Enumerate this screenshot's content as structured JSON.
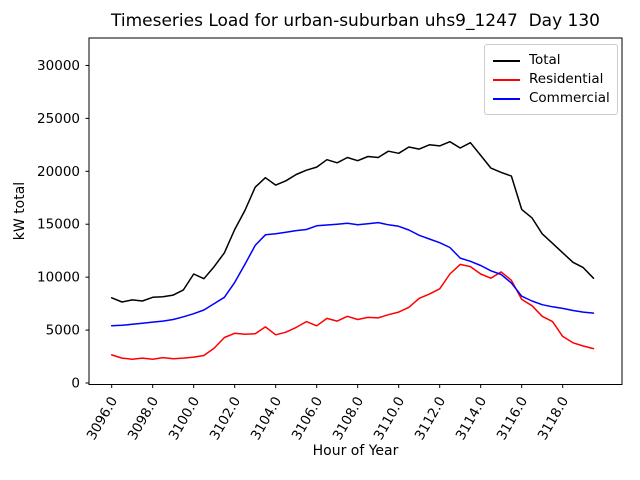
{
  "title": "Timeseries Load for urban-suburban uhs9_1247  Day 130",
  "axes": {
    "xlabel": "Hour of Year",
    "ylabel": "kW total",
    "x_ticks": [
      3096,
      3098,
      3100,
      3102,
      3104,
      3106,
      3108,
      3110,
      3112,
      3114,
      3116,
      3118
    ],
    "x_tick_labels": [
      "3096.0",
      "3098.0",
      "3100.0",
      "3102.0",
      "3104.0",
      "3106.0",
      "3108.0",
      "3110.0",
      "3112.0",
      "3114.0",
      "3116.0",
      "3118.0"
    ],
    "y_ticks": [
      0,
      5000,
      10000,
      15000,
      20000,
      25000,
      30000
    ],
    "y_tick_labels": [
      "0",
      "5000",
      "10000",
      "15000",
      "20000",
      "25000",
      "30000"
    ]
  },
  "legend": {
    "items": [
      {
        "label": "Total",
        "color": "#000000"
      },
      {
        "label": "Residential",
        "color": "#ff0000"
      },
      {
        "label": "Commercial",
        "color": "#0000ff"
      }
    ]
  },
  "chart_data": {
    "type": "line",
    "title": "Timeseries Load for urban-suburban uhs9_1247  Day 130",
    "xlabel": "Hour of Year",
    "ylabel": "kW total",
    "xlim": [
      3094.9,
      3120.2
    ],
    "ylim": [
      -150,
      32600
    ],
    "grid": false,
    "legend_position": "upper right",
    "x": [
      3096.0,
      3096.5,
      3097.0,
      3097.5,
      3098.0,
      3098.5,
      3099.0,
      3099.5,
      3100.0,
      3100.5,
      3101.0,
      3101.5,
      3102.0,
      3102.5,
      3103.0,
      3103.5,
      3104.0,
      3104.5,
      3105.0,
      3105.5,
      3106.0,
      3106.5,
      3107.0,
      3107.5,
      3108.0,
      3108.5,
      3109.0,
      3109.5,
      3110.0,
      3110.5,
      3111.0,
      3111.5,
      3112.0,
      3112.5,
      3113.0,
      3113.5,
      3114.0,
      3114.5,
      3115.0,
      3115.5,
      3116.0,
      3116.5,
      3117.0,
      3117.5,
      3118.0,
      3118.5,
      3119.0,
      3119.5
    ],
    "series": [
      {
        "name": "Total",
        "color": "#000000",
        "values": [
          8050,
          7650,
          7850,
          7750,
          8100,
          8150,
          8300,
          8800,
          10300,
          9850,
          11000,
          12300,
          14500,
          16300,
          18500,
          19400,
          18700,
          19100,
          19700,
          20100,
          20400,
          21100,
          20800,
          21300,
          21000,
          21400,
          21300,
          21900,
          21700,
          22300,
          22100,
          22500,
          22400,
          22800,
          22200,
          22700,
          21500,
          20300,
          19900,
          19550,
          16400,
          15600,
          14100,
          13200,
          12300,
          11400,
          10900,
          9900
        ]
      },
      {
        "name": "Residential",
        "color": "#ff0000",
        "values": [
          2650,
          2350,
          2250,
          2350,
          2250,
          2400,
          2300,
          2350,
          2450,
          2600,
          3300,
          4300,
          4700,
          4600,
          4650,
          5300,
          4550,
          4800,
          5250,
          5800,
          5400,
          6100,
          5850,
          6300,
          6000,
          6200,
          6150,
          6450,
          6700,
          7150,
          8000,
          8400,
          8900,
          10300,
          11200,
          11000,
          10300,
          9900,
          10500,
          9700,
          7900,
          7300,
          6300,
          5800,
          4400,
          3800,
          3500,
          3250
        ]
      },
      {
        "name": "Commercial",
        "color": "#0000ff",
        "values": [
          5400,
          5450,
          5550,
          5650,
          5750,
          5850,
          6000,
          6250,
          6550,
          6900,
          7500,
          8100,
          9500,
          11200,
          13000,
          14000,
          14100,
          14250,
          14400,
          14500,
          14850,
          14930,
          15000,
          15100,
          14950,
          15050,
          15150,
          14950,
          14800,
          14450,
          13950,
          13600,
          13250,
          12800,
          11800,
          11500,
          11100,
          10600,
          10250,
          9450,
          8200,
          7750,
          7400,
          7200,
          7050,
          6850,
          6700,
          6600
        ]
      }
    ]
  }
}
